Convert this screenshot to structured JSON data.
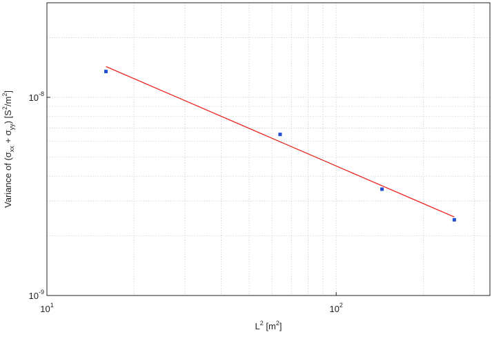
{
  "chart_data": {
    "type": "scatter",
    "xlabel_parts": [
      "L",
      "2",
      " [m",
      "2",
      "]"
    ],
    "ylabel_parts": [
      "Variance of (σ",
      "xx",
      " + σ",
      "yy",
      ") [S",
      "2",
      "/m",
      "2",
      "]"
    ],
    "xscale": "log",
    "yscale": "log",
    "grid": true,
    "xlim": [
      10,
      340
    ],
    "ylim": [
      1e-09,
      3e-08
    ],
    "xticks": [
      {
        "value": 10,
        "label": "10",
        "exponent": "1"
      },
      {
        "value": 100,
        "label": "10",
        "exponent": "2"
      }
    ],
    "yticks": [
      {
        "value": 1e-09,
        "label": "10",
        "exponent": "-9"
      },
      {
        "value": 1e-08,
        "label": "10",
        "exponent": "-8"
      }
    ],
    "xminor": [
      20,
      30,
      40,
      50,
      60,
      70,
      80,
      90,
      200,
      300
    ],
    "yminor": [
      2e-09,
      3e-09,
      4e-09,
      5e-09,
      6e-09,
      7e-09,
      8e-09,
      9e-09,
      2e-08
    ],
    "series": [
      {
        "style": "markers",
        "color": "#1f4fd0",
        "x": [
          16,
          64,
          144,
          256
        ],
        "values": [
          1.35e-08,
          6.5e-09,
          3.44e-09,
          2.41e-09
        ]
      },
      {
        "style": "line",
        "color": "#e8261e",
        "x": [
          16,
          256
        ],
        "values": [
          1.43e-08,
          2.49e-09
        ]
      }
    ]
  }
}
